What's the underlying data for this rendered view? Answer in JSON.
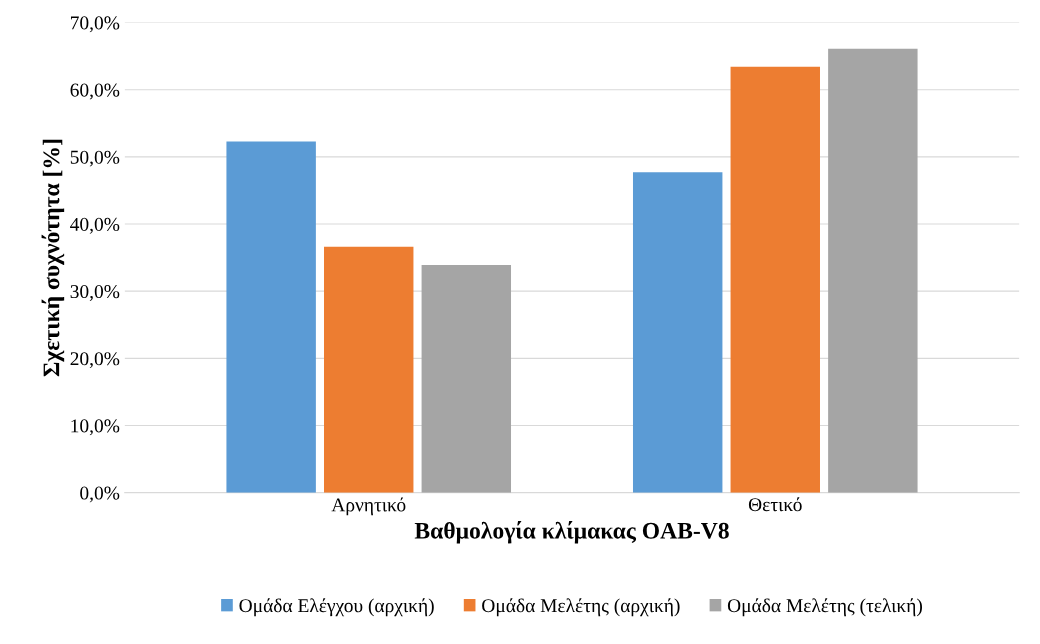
{
  "chart_data": {
    "type": "bar",
    "xlabel": "Βαθμολογία κλίμακας OAB-V8",
    "ylabel": "Σχετική συχνότητα [%]",
    "categories": [
      "Αρνητικό",
      "Θετικό"
    ],
    "series": [
      {
        "name": "Ομάδα Ελέγχου (αρχική)",
        "color": "#5b9bd5",
        "values": [
          52.3,
          47.7
        ]
      },
      {
        "name": "Ομάδα Μελέτης (αρχική)",
        "color": "#ed7d31",
        "values": [
          36.6,
          63.4
        ]
      },
      {
        "name": "Ομάδα Μελέτης (τελική)",
        "color": "#a5a5a5",
        "values": [
          33.9,
          66.1
        ]
      }
    ],
    "ylim": [
      0,
      70
    ],
    "yticks": [
      {
        "value": 0,
        "label": "0,0%"
      },
      {
        "value": 10,
        "label": "10,0%"
      },
      {
        "value": 20,
        "label": "20,0%"
      },
      {
        "value": 30,
        "label": "30,0%"
      },
      {
        "value": 40,
        "label": "40,0%"
      },
      {
        "value": 50,
        "label": "50,0%"
      },
      {
        "value": 60,
        "label": "60,0%"
      },
      {
        "value": 70,
        "label": "70,0%"
      }
    ],
    "grid": "y",
    "legend": "bottom"
  }
}
